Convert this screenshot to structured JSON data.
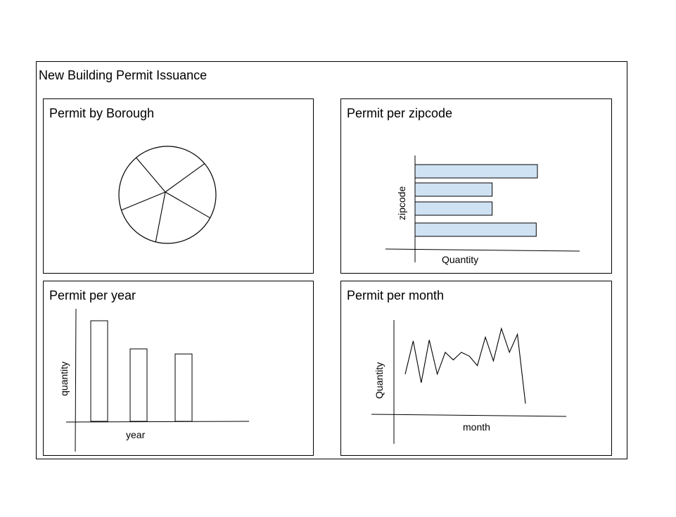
{
  "dashboard": {
    "title": "New Building Permit Issuance"
  },
  "panels": {
    "borough": {
      "title": "Permit by Borough"
    },
    "zipcode": {
      "title": "Permit per zipcode",
      "xlabel": "Quantity",
      "ylabel": "zipcode"
    },
    "year": {
      "title": "Permit per year",
      "xlabel": "year",
      "ylabel": "quantity"
    },
    "month": {
      "title": "Permit per month",
      "xlabel": "month",
      "ylabel": "Quantity"
    }
  },
  "colors": {
    "bar_fill_zipcode": "#cfe2f3",
    "stroke": "#000000",
    "bar_fill_year": "#ffffff"
  },
  "chart_data": [
    {
      "type": "pie",
      "slices": [
        0.25,
        0.19,
        0.21,
        0.16,
        0.19
      ]
    },
    {
      "type": "bar",
      "orientation": "horizontal",
      "values": [
        1.0,
        0.63,
        0.63,
        0.99
      ]
    },
    {
      "type": "bar",
      "values": [
        1.0,
        0.72,
        0.67
      ]
    },
    {
      "type": "line",
      "values": [
        0.43,
        0.78,
        0.34,
        0.79,
        0.43,
        0.66,
        0.58,
        0.66,
        0.62,
        0.52,
        0.82,
        0.57,
        0.91,
        0.66,
        0.85,
        0.12
      ]
    }
  ]
}
